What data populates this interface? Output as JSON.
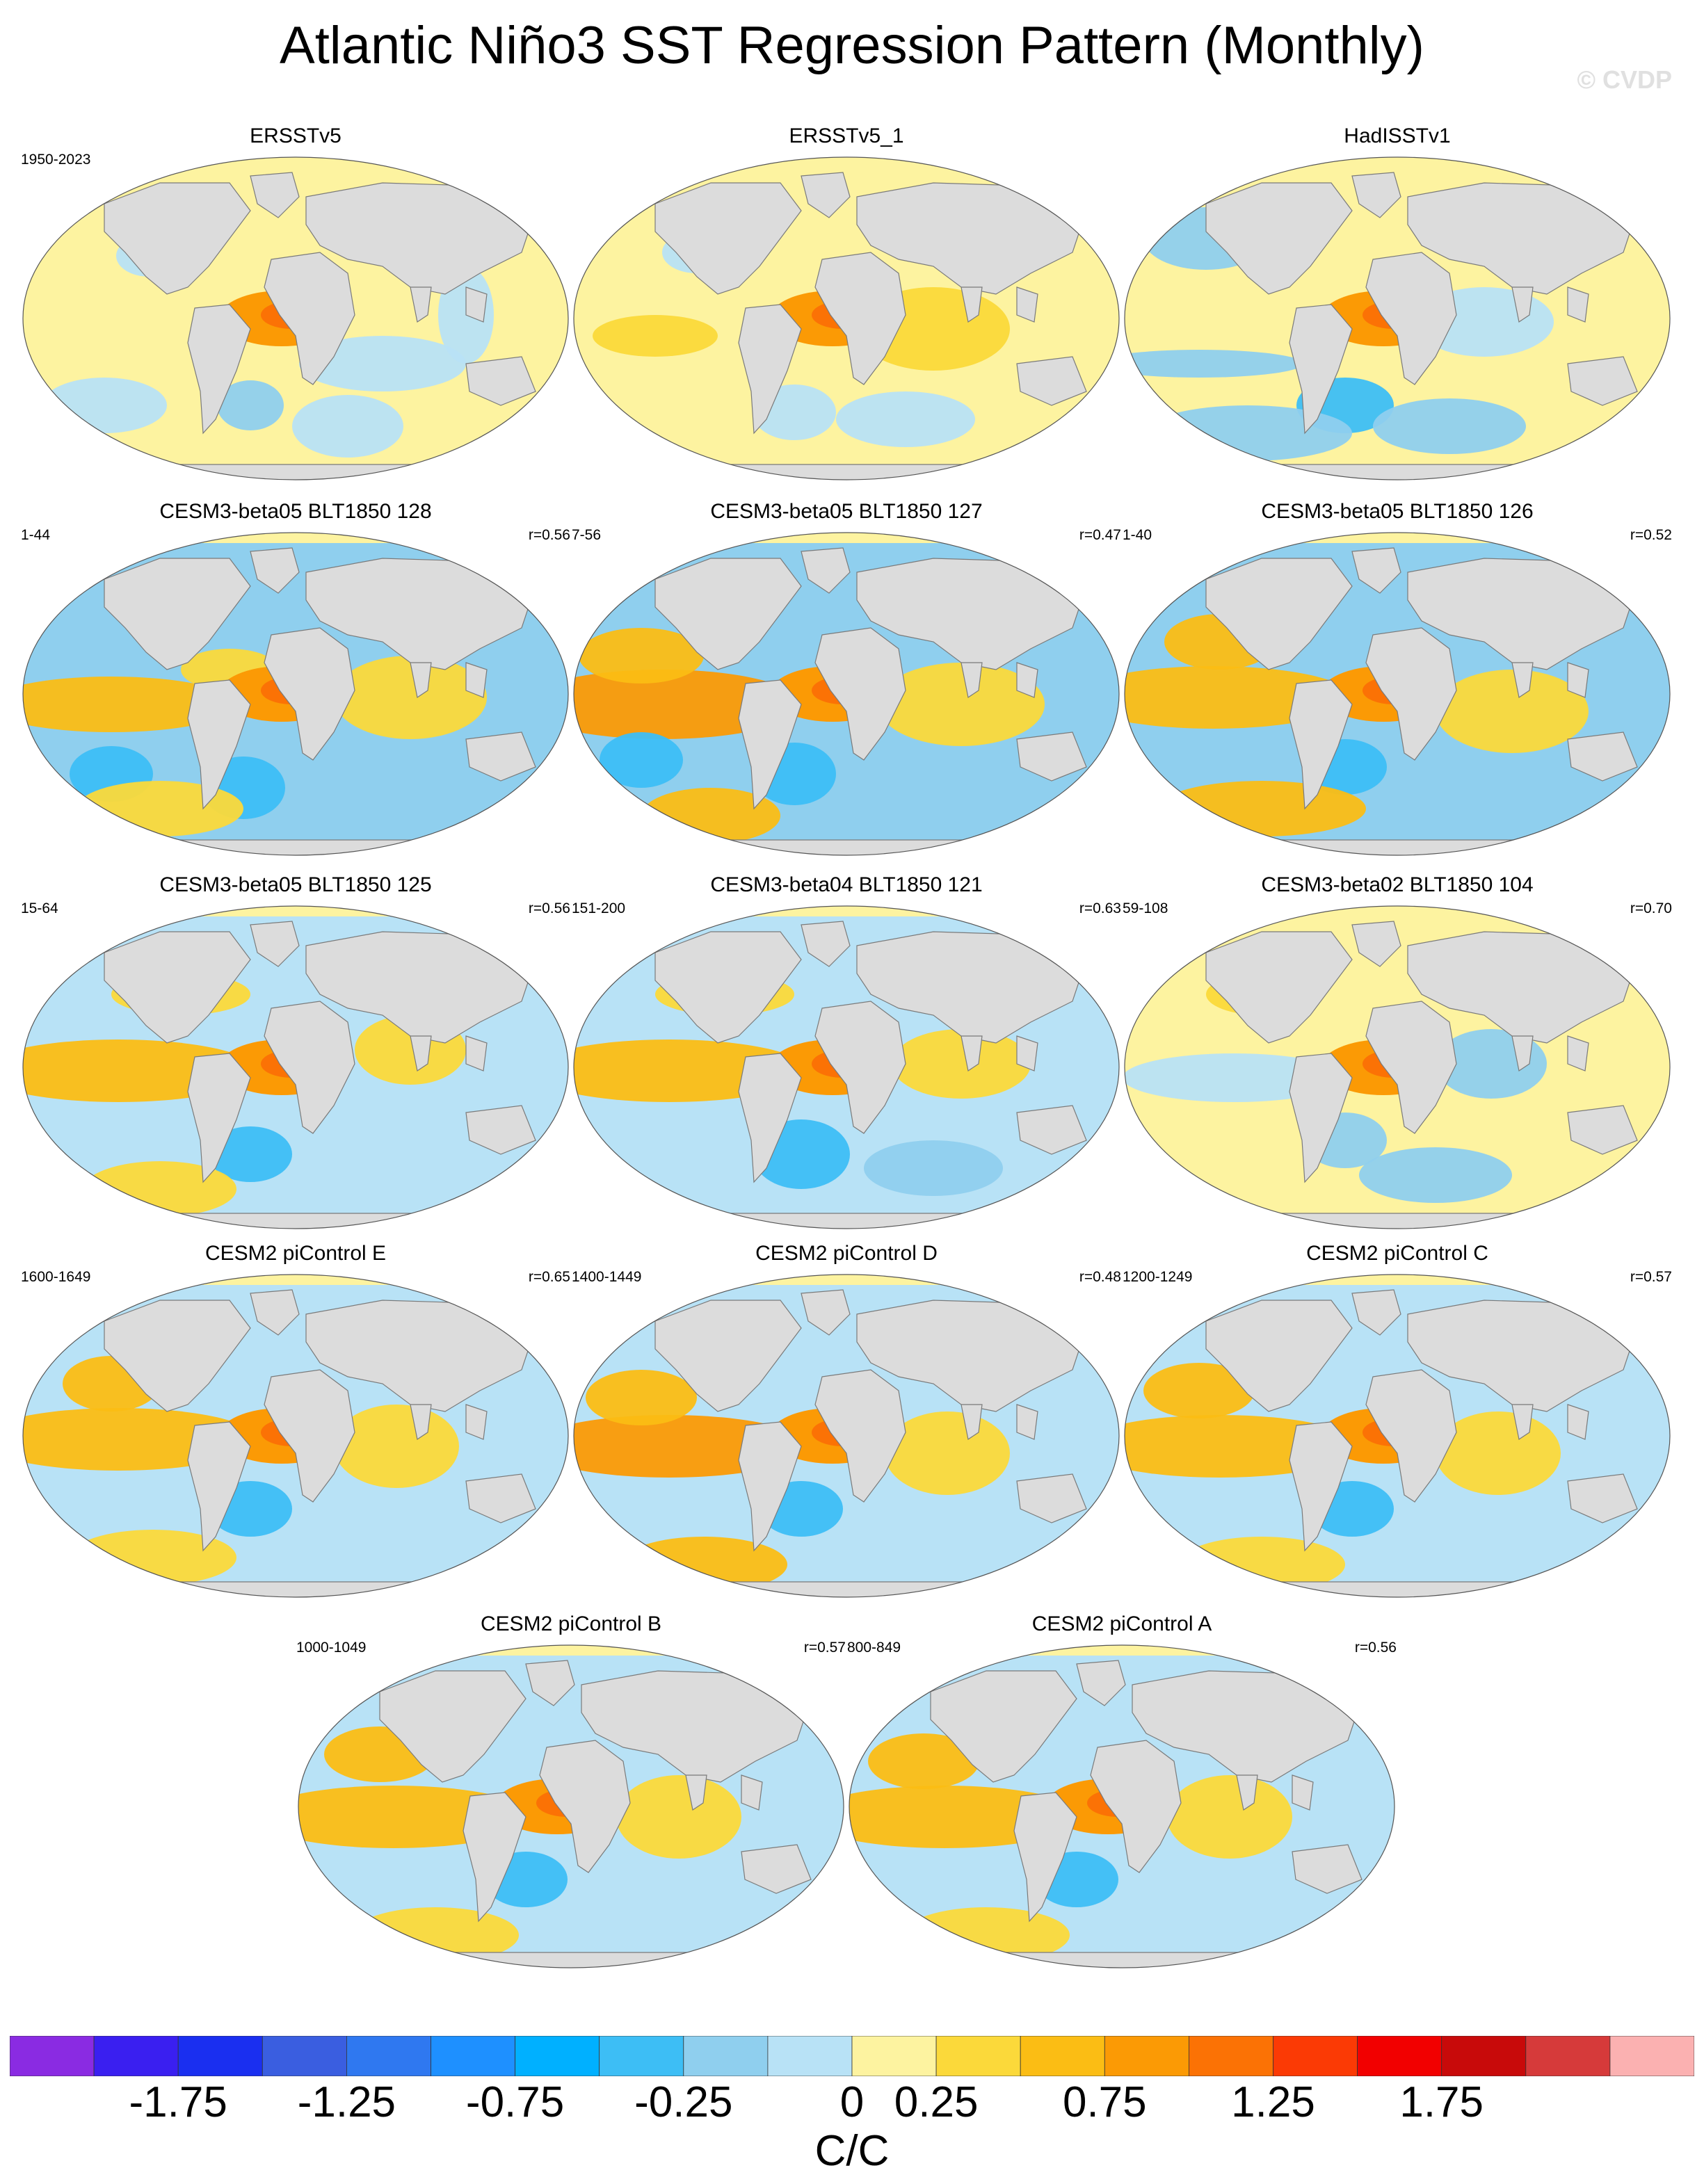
{
  "title": "Atlantic Niño3 SST Regression Pattern (Monthly)",
  "watermark": "© CVDP",
  "panels": [
    {
      "title": "ERSSTv5",
      "years": "1950-2023",
      "corr": "",
      "pattern": "obs1"
    },
    {
      "title": "ERSSTv5_1",
      "years": "",
      "corr": "",
      "pattern": "obs2"
    },
    {
      "title": "HadISSTv1",
      "years": "",
      "corr": "",
      "pattern": "obs3"
    },
    {
      "title": "CESM3-beta05 BLT1850 128",
      "years": "1-44",
      "corr": "r=0.56",
      "pattern": "m1"
    },
    {
      "title": "CESM3-beta05 BLT1850 127",
      "years": "7-56",
      "corr": "r=0.47",
      "pattern": "m2"
    },
    {
      "title": "CESM3-beta05 BLT1850 126",
      "years": "1-40",
      "corr": "r=0.52",
      "pattern": "m3"
    },
    {
      "title": "CESM3-beta05 BLT1850 125",
      "years": "15-64",
      "corr": "r=0.56",
      "pattern": "m4"
    },
    {
      "title": "CESM3-beta04 BLT1850 121",
      "years": "151-200",
      "corr": "r=0.63",
      "pattern": "m5"
    },
    {
      "title": "CESM3-beta02 BLT1850 104",
      "years": "59-108",
      "corr": "r=0.70",
      "pattern": "m6"
    },
    {
      "title": "CESM2 piControl E",
      "years": "1600-1649",
      "corr": "r=0.65",
      "pattern": "m7"
    },
    {
      "title": "CESM2 piControl D",
      "years": "1400-1449",
      "corr": "r=0.48",
      "pattern": "m8"
    },
    {
      "title": "CESM2 piControl C",
      "years": "1200-1249",
      "corr": "r=0.57",
      "pattern": "m9"
    },
    {
      "title": "CESM2 piControl B",
      "years": "1000-1049",
      "corr": "r=0.57",
      "pattern": "m10"
    },
    {
      "title": "CESM2 piControl A",
      "years": "800-849",
      "corr": "r=0.56",
      "pattern": "m11"
    }
  ],
  "colorbar": {
    "colors": [
      "#8a2be2",
      "#3a1ff0",
      "#1a2ff0",
      "#3a5ee0",
      "#2f78f0",
      "#1e90ff",
      "#00b0ff",
      "#3dbef5",
      "#8fcfee",
      "#b8e2f6",
      "#fdf3a0",
      "#fbd93a",
      "#fbbd14",
      "#fb9a05",
      "#fb7205",
      "#fb3a05",
      "#f20000",
      "#c80a0a",
      "#d63a3a",
      "#fbb1b1"
    ],
    "tick_labels": [
      "-1.75",
      "-1.25",
      "-0.75",
      "-0.25",
      "0",
      "0.25",
      "0.75",
      "1.25",
      "1.75"
    ],
    "units": "C/C"
  }
}
